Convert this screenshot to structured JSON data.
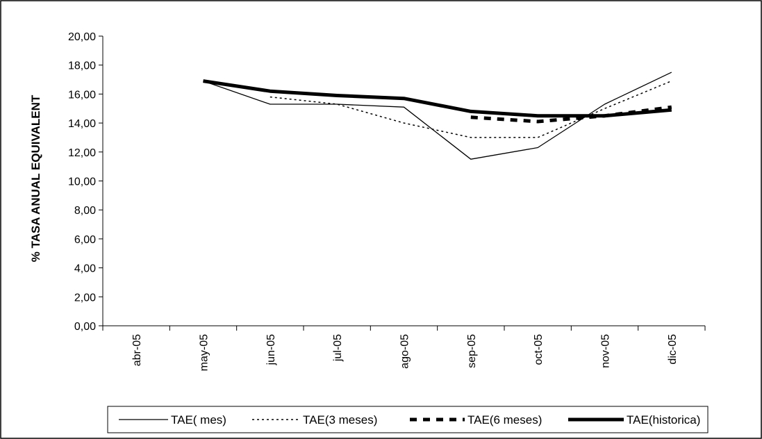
{
  "chart_data": {
    "type": "line",
    "title": "",
    "xlabel": "",
    "ylabel": "% TASA ANUAL EQUIVALENT",
    "categories": [
      "abr-05",
      "may-05",
      "jun-05",
      "jul-05",
      "ago-05",
      "sep-05",
      "oct-05",
      "nov-05",
      "dic-05"
    ],
    "ylim": [
      0,
      20
    ],
    "yticks": [
      "0,00",
      "2,00",
      "4,00",
      "6,00",
      "8,00",
      "10,00",
      "12,00",
      "14,00",
      "16,00",
      "18,00",
      "20,00"
    ],
    "grid": false,
    "legend": "bottom",
    "series": [
      {
        "name": "TAE( mes)",
        "style": "thin-solid",
        "color": "#000000",
        "values": [
          null,
          16.9,
          15.3,
          15.3,
          15.1,
          11.5,
          12.3,
          15.3,
          17.5
        ]
      },
      {
        "name": "TAE(3 meses)",
        "style": "dotted",
        "color": "#000000",
        "values": [
          null,
          null,
          15.8,
          15.3,
          14.0,
          13.0,
          13.0,
          15.0,
          16.9
        ]
      },
      {
        "name": "TAE(6 meses)",
        "style": "thick-dashed",
        "color": "#000000",
        "values": [
          null,
          null,
          null,
          null,
          null,
          14.4,
          14.1,
          14.5,
          15.1
        ]
      },
      {
        "name": "TAE(historica)",
        "style": "thick-solid",
        "color": "#000000",
        "values": [
          null,
          16.9,
          16.2,
          15.9,
          15.7,
          14.8,
          14.5,
          14.5,
          14.9
        ]
      }
    ]
  }
}
